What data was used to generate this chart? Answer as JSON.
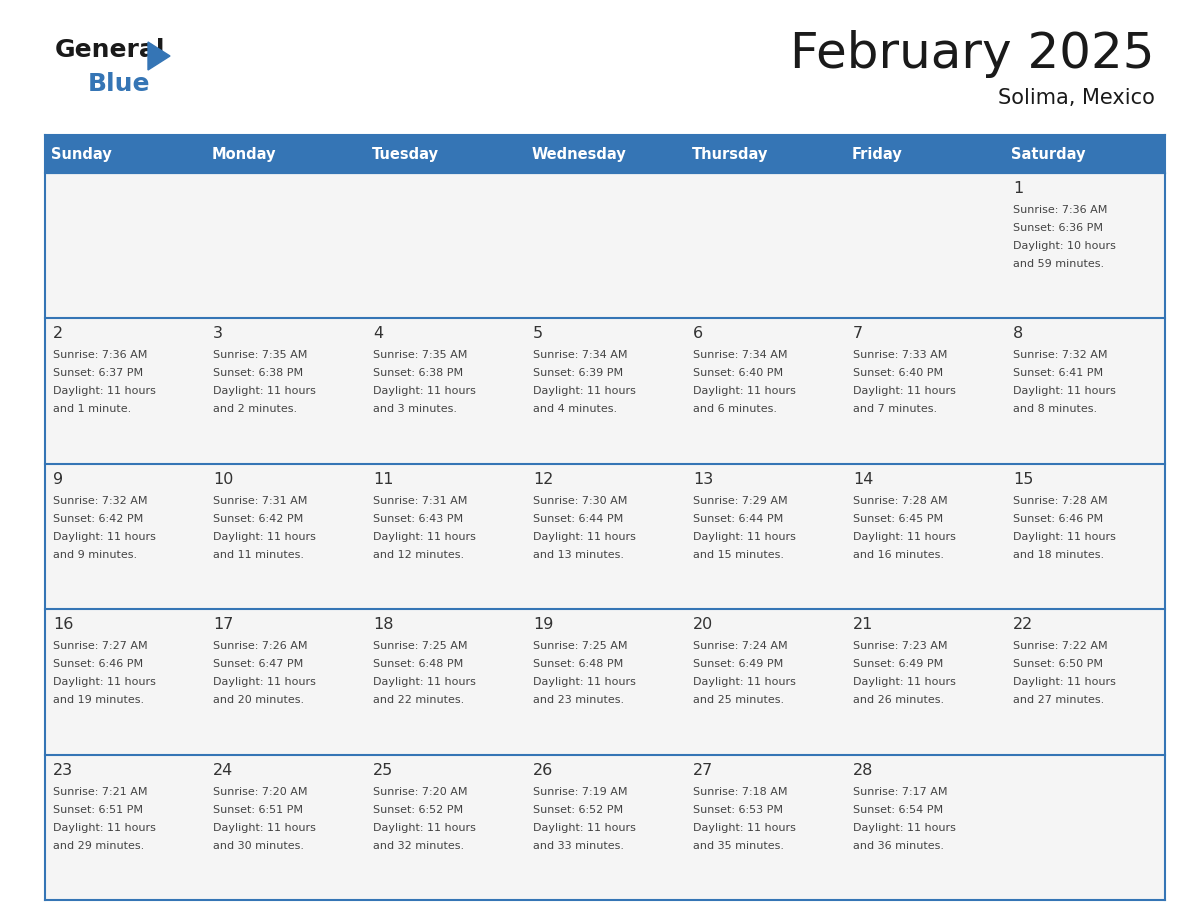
{
  "title": "February 2025",
  "subtitle": "Solima, Mexico",
  "header_bg_color": "#3575b5",
  "header_text_color": "#ffffff",
  "row_bg_even": "#f5f5f5",
  "row_bg_odd": "#ffffff",
  "border_color": "#3575b5",
  "day_number_color": "#333333",
  "cell_text_color": "#444444",
  "days_of_week": [
    "Sunday",
    "Monday",
    "Tuesday",
    "Wednesday",
    "Thursday",
    "Friday",
    "Saturday"
  ],
  "calendar": [
    [
      {
        "day": null,
        "sunrise": null,
        "sunset": null,
        "daylight": null
      },
      {
        "day": null,
        "sunrise": null,
        "sunset": null,
        "daylight": null
      },
      {
        "day": null,
        "sunrise": null,
        "sunset": null,
        "daylight": null
      },
      {
        "day": null,
        "sunrise": null,
        "sunset": null,
        "daylight": null
      },
      {
        "day": null,
        "sunrise": null,
        "sunset": null,
        "daylight": null
      },
      {
        "day": null,
        "sunrise": null,
        "sunset": null,
        "daylight": null
      },
      {
        "day": 1,
        "sunrise": "7:36 AM",
        "sunset": "6:36 PM",
        "daylight": "10 hours\nand 59 minutes."
      }
    ],
    [
      {
        "day": 2,
        "sunrise": "7:36 AM",
        "sunset": "6:37 PM",
        "daylight": "11 hours\nand 1 minute."
      },
      {
        "day": 3,
        "sunrise": "7:35 AM",
        "sunset": "6:38 PM",
        "daylight": "11 hours\nand 2 minutes."
      },
      {
        "day": 4,
        "sunrise": "7:35 AM",
        "sunset": "6:38 PM",
        "daylight": "11 hours\nand 3 minutes."
      },
      {
        "day": 5,
        "sunrise": "7:34 AM",
        "sunset": "6:39 PM",
        "daylight": "11 hours\nand 4 minutes."
      },
      {
        "day": 6,
        "sunrise": "7:34 AM",
        "sunset": "6:40 PM",
        "daylight": "11 hours\nand 6 minutes."
      },
      {
        "day": 7,
        "sunrise": "7:33 AM",
        "sunset": "6:40 PM",
        "daylight": "11 hours\nand 7 minutes."
      },
      {
        "day": 8,
        "sunrise": "7:32 AM",
        "sunset": "6:41 PM",
        "daylight": "11 hours\nand 8 minutes."
      }
    ],
    [
      {
        "day": 9,
        "sunrise": "7:32 AM",
        "sunset": "6:42 PM",
        "daylight": "11 hours\nand 9 minutes."
      },
      {
        "day": 10,
        "sunrise": "7:31 AM",
        "sunset": "6:42 PM",
        "daylight": "11 hours\nand 11 minutes."
      },
      {
        "day": 11,
        "sunrise": "7:31 AM",
        "sunset": "6:43 PM",
        "daylight": "11 hours\nand 12 minutes."
      },
      {
        "day": 12,
        "sunrise": "7:30 AM",
        "sunset": "6:44 PM",
        "daylight": "11 hours\nand 13 minutes."
      },
      {
        "day": 13,
        "sunrise": "7:29 AM",
        "sunset": "6:44 PM",
        "daylight": "11 hours\nand 15 minutes."
      },
      {
        "day": 14,
        "sunrise": "7:28 AM",
        "sunset": "6:45 PM",
        "daylight": "11 hours\nand 16 minutes."
      },
      {
        "day": 15,
        "sunrise": "7:28 AM",
        "sunset": "6:46 PM",
        "daylight": "11 hours\nand 18 minutes."
      }
    ],
    [
      {
        "day": 16,
        "sunrise": "7:27 AM",
        "sunset": "6:46 PM",
        "daylight": "11 hours\nand 19 minutes."
      },
      {
        "day": 17,
        "sunrise": "7:26 AM",
        "sunset": "6:47 PM",
        "daylight": "11 hours\nand 20 minutes."
      },
      {
        "day": 18,
        "sunrise": "7:25 AM",
        "sunset": "6:48 PM",
        "daylight": "11 hours\nand 22 minutes."
      },
      {
        "day": 19,
        "sunrise": "7:25 AM",
        "sunset": "6:48 PM",
        "daylight": "11 hours\nand 23 minutes."
      },
      {
        "day": 20,
        "sunrise": "7:24 AM",
        "sunset": "6:49 PM",
        "daylight": "11 hours\nand 25 minutes."
      },
      {
        "day": 21,
        "sunrise": "7:23 AM",
        "sunset": "6:49 PM",
        "daylight": "11 hours\nand 26 minutes."
      },
      {
        "day": 22,
        "sunrise": "7:22 AM",
        "sunset": "6:50 PM",
        "daylight": "11 hours\nand 27 minutes."
      }
    ],
    [
      {
        "day": 23,
        "sunrise": "7:21 AM",
        "sunset": "6:51 PM",
        "daylight": "11 hours\nand 29 minutes."
      },
      {
        "day": 24,
        "sunrise": "7:20 AM",
        "sunset": "6:51 PM",
        "daylight": "11 hours\nand 30 minutes."
      },
      {
        "day": 25,
        "sunrise": "7:20 AM",
        "sunset": "6:52 PM",
        "daylight": "11 hours\nand 32 minutes."
      },
      {
        "day": 26,
        "sunrise": "7:19 AM",
        "sunset": "6:52 PM",
        "daylight": "11 hours\nand 33 minutes."
      },
      {
        "day": 27,
        "sunrise": "7:18 AM",
        "sunset": "6:53 PM",
        "daylight": "11 hours\nand 35 minutes."
      },
      {
        "day": 28,
        "sunrise": "7:17 AM",
        "sunset": "6:54 PM",
        "daylight": "11 hours\nand 36 minutes."
      },
      {
        "day": null,
        "sunrise": null,
        "sunset": null,
        "daylight": null
      }
    ]
  ]
}
